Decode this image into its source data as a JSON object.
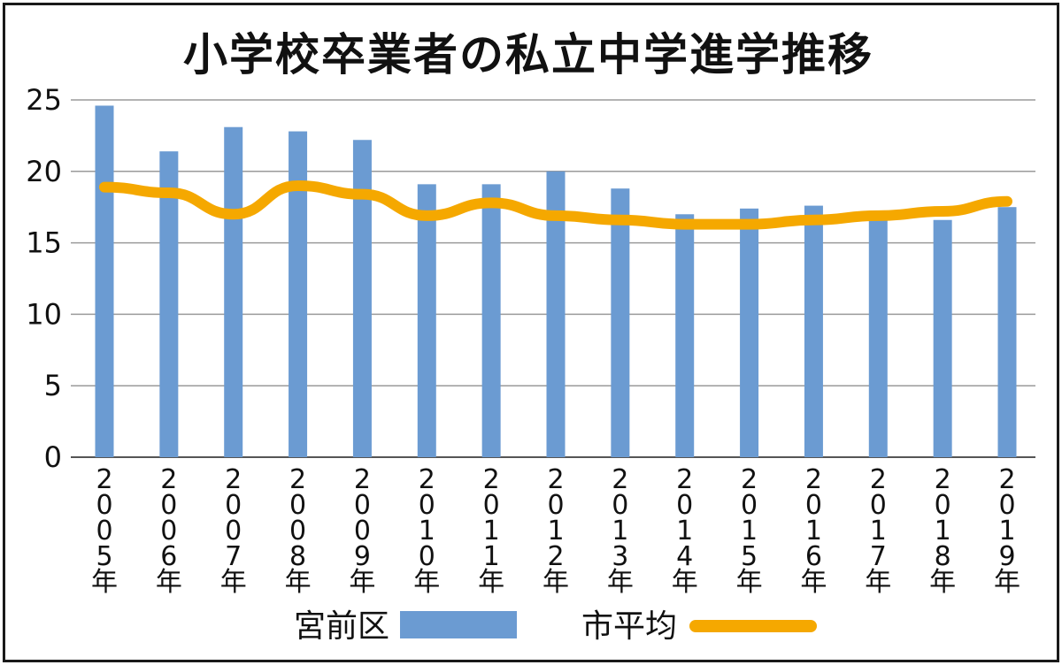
{
  "chart_data": {
    "type": "bar",
    "title": "小学校卒業者の私立中学進学推移",
    "categories": [
      "2005年",
      "2006年",
      "2007年",
      "2008年",
      "2009年",
      "2010年",
      "2011年",
      "2012年",
      "2013年",
      "2014年",
      "2015年",
      "2016年",
      "2017年",
      "2018年",
      "2019年"
    ],
    "category_glyphs": [
      [
        "2",
        "0",
        "0",
        "5",
        "年"
      ],
      [
        "2",
        "0",
        "0",
        "6",
        "年"
      ],
      [
        "2",
        "0",
        "0",
        "7",
        "年"
      ],
      [
        "2",
        "0",
        "0",
        "8",
        "年"
      ],
      [
        "2",
        "0",
        "0",
        "9",
        "年"
      ],
      [
        "2",
        "0",
        "1",
        "0",
        "年"
      ],
      [
        "2",
        "0",
        "1",
        "1",
        "年"
      ],
      [
        "2",
        "0",
        "1",
        "2",
        "年"
      ],
      [
        "2",
        "0",
        "1",
        "3",
        "年"
      ],
      [
        "2",
        "0",
        "1",
        "4",
        "年"
      ],
      [
        "2",
        "0",
        "1",
        "5",
        "年"
      ],
      [
        "2",
        "0",
        "1",
        "6",
        "年"
      ],
      [
        "2",
        "0",
        "1",
        "7",
        "年"
      ],
      [
        "2",
        "0",
        "1",
        "8",
        "年"
      ],
      [
        "2",
        "0",
        "1",
        "9",
        "年"
      ]
    ],
    "series": [
      {
        "name": "宮前区",
        "type": "bar",
        "color": "#6b9bd2",
        "values": [
          24.6,
          21.4,
          23.1,
          22.8,
          22.2,
          19.1,
          19.1,
          20.0,
          18.8,
          17.0,
          17.4,
          17.6,
          16.8,
          16.6,
          17.5
        ]
      },
      {
        "name": "市平均",
        "type": "line",
        "color": "#f5a800",
        "values": [
          18.9,
          18.5,
          17.0,
          19.0,
          18.4,
          16.9,
          17.8,
          16.9,
          16.6,
          16.3,
          16.3,
          16.6,
          16.9,
          17.2,
          17.9
        ]
      }
    ],
    "ylim": [
      0,
      25
    ],
    "yticks": [
      "0",
      "5",
      "10",
      "15",
      "20",
      "25"
    ],
    "grid": true,
    "legend_position": "bottom"
  }
}
